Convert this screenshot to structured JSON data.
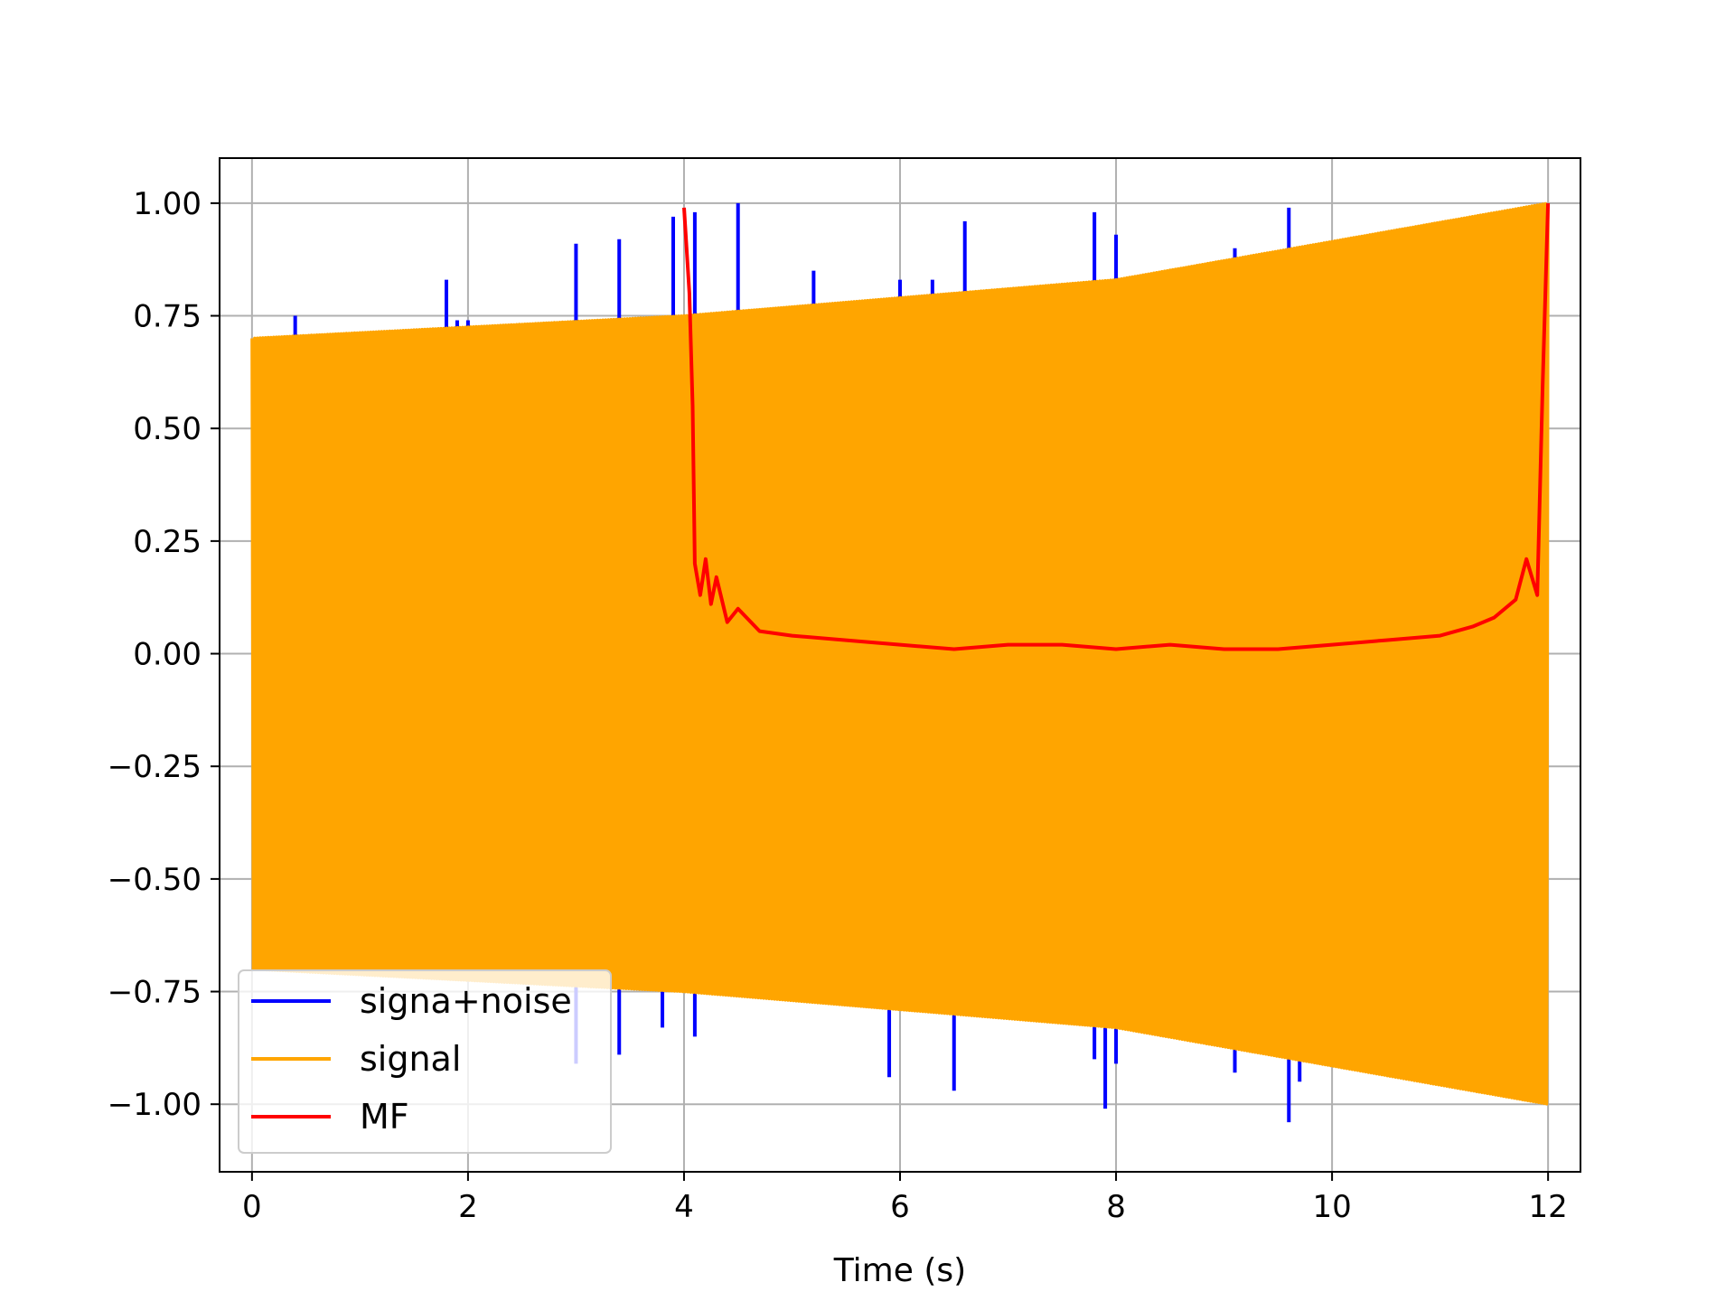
{
  "chart_data": {
    "type": "line",
    "title": "",
    "xlabel": "Time (s)",
    "ylabel": "",
    "xlim": [
      -0.3,
      12.3
    ],
    "ylim": [
      -1.15,
      1.1
    ],
    "xticks": [
      0,
      2,
      4,
      6,
      8,
      10,
      12
    ],
    "xtick_labels": [
      "0",
      "2",
      "4",
      "6",
      "8",
      "10",
      "12"
    ],
    "yticks": [
      -1.0,
      -0.75,
      -0.5,
      -0.25,
      0.0,
      0.25,
      0.5,
      0.75,
      1.0
    ],
    "ytick_labels": [
      "−1.00",
      "−0.75",
      "−0.50",
      "−0.25",
      "0.00",
      "0.25",
      "0.50",
      "0.75",
      "1.00"
    ],
    "grid": true,
    "legend_position": "lower-left",
    "legend": [
      {
        "label": "signa+noise",
        "color": "#0000ff"
      },
      {
        "label": "signal",
        "color": "#ffa500"
      },
      {
        "label": "MF",
        "color": "#ff0000"
      }
    ],
    "series": [
      {
        "name": "signa+noise",
        "color": "#0000ff",
        "envelope_upper": [
          [
            0,
            0.7
          ],
          [
            4,
            0.75
          ],
          [
            8,
            0.83
          ],
          [
            12,
            1.0
          ]
        ],
        "spikes": [
          [
            0.4,
            0.75
          ],
          [
            1.8,
            0.83
          ],
          [
            1.9,
            0.74
          ],
          [
            2.0,
            0.74
          ],
          [
            3.0,
            0.91
          ],
          [
            3.4,
            0.92
          ],
          [
            3.9,
            0.97
          ],
          [
            4.1,
            0.98
          ],
          [
            4.5,
            1.0
          ],
          [
            5.2,
            0.85
          ],
          [
            6.0,
            0.83
          ],
          [
            6.3,
            0.83
          ],
          [
            6.6,
            0.96
          ],
          [
            7.8,
            0.98
          ],
          [
            8.0,
            0.93
          ],
          [
            9.1,
            0.9
          ],
          [
            9.6,
            0.99
          ],
          [
            3.0,
            -0.91
          ],
          [
            3.4,
            -0.89
          ],
          [
            3.8,
            -0.83
          ],
          [
            4.1,
            -0.85
          ],
          [
            5.9,
            -0.94
          ],
          [
            6.5,
            -0.97
          ],
          [
            7.8,
            -0.9
          ],
          [
            7.9,
            -1.01
          ],
          [
            8.0,
            -0.91
          ],
          [
            9.1,
            -0.93
          ],
          [
            9.6,
            -1.04
          ],
          [
            9.7,
            -0.95
          ]
        ]
      },
      {
        "name": "signal",
        "color": "#ffa500",
        "envelope_upper": [
          [
            0,
            0.7
          ],
          [
            4,
            0.75
          ],
          [
            8,
            0.83
          ],
          [
            12,
            1.0
          ]
        ],
        "envelope_lower": [
          [
            0,
            -0.7
          ],
          [
            4,
            -0.75
          ],
          [
            8,
            -0.83
          ],
          [
            12,
            -1.0
          ]
        ]
      },
      {
        "name": "MF",
        "color": "#ff0000",
        "x": [
          4.0,
          4.05,
          4.08,
          4.1,
          4.15,
          4.2,
          4.25,
          4.3,
          4.4,
          4.5,
          4.7,
          5.0,
          5.5,
          6.0,
          6.5,
          7.0,
          7.5,
          8.0,
          8.5,
          9.0,
          9.5,
          10.0,
          10.5,
          11.0,
          11.3,
          11.5,
          11.7,
          11.8,
          11.9,
          11.95,
          12.0
        ],
        "y": [
          0.99,
          0.8,
          0.55,
          0.2,
          0.13,
          0.21,
          0.11,
          0.17,
          0.07,
          0.1,
          0.05,
          0.04,
          0.03,
          0.02,
          0.01,
          0.02,
          0.02,
          0.01,
          0.02,
          0.01,
          0.01,
          0.02,
          0.03,
          0.04,
          0.06,
          0.08,
          0.12,
          0.21,
          0.13,
          0.6,
          1.0
        ]
      }
    ]
  }
}
